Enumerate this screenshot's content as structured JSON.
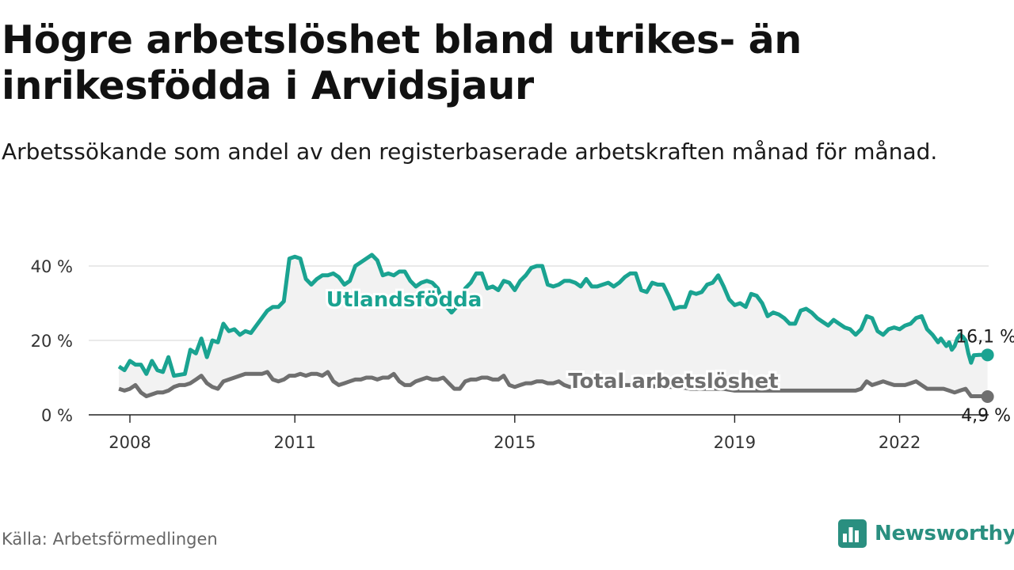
{
  "header": {
    "title": "Högre arbetslöshet bland utrikes- än inrikesfödda i Arvidsjaur",
    "subtitle": "Arbetssökande som andel av den registerbaserade arbetskraften månad för månad."
  },
  "footer": {
    "source": "Källa: Arbetsförmedlingen",
    "brand": "Newsworthy"
  },
  "colors": {
    "foreign_born": "#1aa391",
    "total": "#6f6f6f",
    "band": "#f2f2f2",
    "grid": "#dddddd",
    "brand": "#2a8f80"
  },
  "chart_data": {
    "type": "line",
    "title": "Högre arbetslöshet bland utrikes- än inrikesfödda i Arvidsjaur",
    "subtitle": "Arbetssökande som andel av den registerbaserade arbetskraften månad för månad.",
    "xlabel": "",
    "ylabel": "",
    "x_range": [
      2007.8,
      2022.9
    ],
    "ylim": [
      0,
      45
    ],
    "y_ticks": [
      {
        "value": 0,
        "label": "0 %"
      },
      {
        "value": 20,
        "label": "20 %"
      },
      {
        "value": 40,
        "label": "40 %"
      }
    ],
    "x_ticks": [
      {
        "value": 2008,
        "label": "2008"
      },
      {
        "value": 2011,
        "label": "2011"
      },
      {
        "value": 2015,
        "label": "2015"
      },
      {
        "value": 2019,
        "label": "2019"
      },
      {
        "value": 2022,
        "label": "2022"
      }
    ],
    "grid": true,
    "series": [
      {
        "name": "Utlandsfödda",
        "end_label": "16,1 %",
        "points": [
          [
            2007.8,
            13
          ],
          [
            2007.9,
            12
          ],
          [
            2008.0,
            14.5
          ],
          [
            2008.1,
            13.5
          ],
          [
            2008.2,
            13.5
          ],
          [
            2008.3,
            11
          ],
          [
            2008.4,
            14.5
          ],
          [
            2008.5,
            12
          ],
          [
            2008.6,
            11.5
          ],
          [
            2008.7,
            15.5
          ],
          [
            2008.8,
            10.5
          ],
          [
            2009.0,
            11
          ],
          [
            2009.1,
            17.5
          ],
          [
            2009.2,
            16.5
          ],
          [
            2009.3,
            20.5
          ],
          [
            2009.4,
            15.5
          ],
          [
            2009.5,
            20
          ],
          [
            2009.6,
            19.5
          ],
          [
            2009.7,
            24.5
          ],
          [
            2009.8,
            22.5
          ],
          [
            2009.9,
            23
          ],
          [
            2010.0,
            21.5
          ],
          [
            2010.1,
            22.5
          ],
          [
            2010.2,
            22
          ],
          [
            2010.3,
            24
          ],
          [
            2010.4,
            26
          ],
          [
            2010.5,
            28
          ],
          [
            2010.6,
            29
          ],
          [
            2010.7,
            29
          ],
          [
            2010.8,
            30.5
          ],
          [
            2010.9,
            42
          ],
          [
            2011.0,
            42.5
          ],
          [
            2011.1,
            42
          ],
          [
            2011.2,
            36.5
          ],
          [
            2011.3,
            35
          ],
          [
            2011.4,
            36.5
          ],
          [
            2011.5,
            37.5
          ],
          [
            2011.6,
            37.5
          ],
          [
            2011.7,
            38
          ],
          [
            2011.8,
            37
          ],
          [
            2011.9,
            35
          ],
          [
            2012.0,
            36
          ],
          [
            2012.1,
            40
          ],
          [
            2012.2,
            41
          ],
          [
            2012.4,
            43
          ],
          [
            2012.5,
            41.5
          ],
          [
            2012.6,
            37.5
          ],
          [
            2012.7,
            38
          ],
          [
            2012.8,
            37.5
          ],
          [
            2012.9,
            38.5
          ],
          [
            2013.0,
            38.5
          ],
          [
            2013.1,
            36
          ],
          [
            2013.2,
            34.5
          ],
          [
            2013.3,
            35.5
          ],
          [
            2013.4,
            36
          ],
          [
            2013.5,
            35.5
          ],
          [
            2013.6,
            34
          ],
          [
            2013.7,
            30
          ],
          [
            2013.85,
            27.5
          ],
          [
            2014.0,
            30
          ],
          [
            2014.1,
            34
          ],
          [
            2014.2,
            35.5
          ],
          [
            2014.3,
            38
          ],
          [
            2014.4,
            38
          ],
          [
            2014.5,
            34
          ],
          [
            2014.6,
            34.5
          ],
          [
            2014.7,
            33.5
          ],
          [
            2014.8,
            36
          ],
          [
            2014.9,
            35.5
          ],
          [
            2015.0,
            33.5
          ],
          [
            2015.1,
            36
          ],
          [
            2015.2,
            37.5
          ],
          [
            2015.3,
            39.5
          ],
          [
            2015.4,
            40
          ],
          [
            2015.5,
            40
          ],
          [
            2015.6,
            35
          ],
          [
            2015.7,
            34.5
          ],
          [
            2015.8,
            35
          ],
          [
            2015.9,
            36
          ],
          [
            2016.0,
            36
          ],
          [
            2016.1,
            35.5
          ],
          [
            2016.2,
            34.5
          ],
          [
            2016.3,
            36.5
          ],
          [
            2016.4,
            34.5
          ],
          [
            2016.5,
            34.5
          ],
          [
            2016.6,
            35
          ],
          [
            2016.7,
            35.5
          ],
          [
            2016.8,
            34.5
          ],
          [
            2016.9,
            35.5
          ],
          [
            2017.0,
            37
          ],
          [
            2017.1,
            38
          ],
          [
            2017.2,
            38
          ],
          [
            2017.3,
            33.5
          ],
          [
            2017.4,
            33
          ],
          [
            2017.5,
            35.5
          ],
          [
            2017.6,
            35
          ],
          [
            2017.7,
            35
          ],
          [
            2017.8,
            32
          ],
          [
            2017.9,
            28.5
          ],
          [
            2018.0,
            29
          ],
          [
            2018.1,
            29
          ],
          [
            2018.2,
            33
          ],
          [
            2018.3,
            32.5
          ],
          [
            2018.4,
            33
          ],
          [
            2018.5,
            35
          ],
          [
            2018.6,
            35.5
          ],
          [
            2018.7,
            37.5
          ],
          [
            2018.8,
            34.5
          ],
          [
            2018.9,
            31
          ],
          [
            2019.0,
            29.5
          ],
          [
            2019.1,
            30
          ],
          [
            2019.2,
            29
          ],
          [
            2019.3,
            32.5
          ],
          [
            2019.4,
            32
          ],
          [
            2019.5,
            30
          ],
          [
            2019.6,
            26.5
          ],
          [
            2019.7,
            27.5
          ],
          [
            2019.8,
            27
          ],
          [
            2019.9,
            26
          ],
          [
            2020.0,
            24.5
          ],
          [
            2020.1,
            24.5
          ],
          [
            2020.2,
            28
          ],
          [
            2020.3,
            28.5
          ],
          [
            2020.4,
            27.5
          ],
          [
            2020.5,
            26
          ],
          [
            2020.6,
            25
          ],
          [
            2020.7,
            24
          ],
          [
            2020.8,
            25.5
          ],
          [
            2020.9,
            24.5
          ],
          [
            2021.0,
            23.5
          ],
          [
            2021.1,
            23
          ],
          [
            2021.2,
            21.5
          ],
          [
            2021.3,
            23
          ],
          [
            2021.4,
            26.5
          ],
          [
            2021.5,
            26
          ],
          [
            2021.6,
            22.5
          ],
          [
            2021.7,
            21.5
          ],
          [
            2021.8,
            23
          ],
          [
            2021.9,
            23.5
          ],
          [
            2022.0,
            23
          ],
          [
            2022.1,
            24
          ],
          [
            2022.2,
            24.5
          ],
          [
            2022.3,
            26
          ],
          [
            2022.4,
            26.5
          ],
          [
            2022.5,
            23
          ],
          [
            2022.6,
            21.5
          ],
          [
            2022.7,
            19.5
          ],
          [
            2022.75,
            20.5
          ],
          [
            2022.8,
            19.5
          ],
          [
            2022.85,
            18.5
          ],
          [
            2022.9,
            19.5
          ],
          [
            2022.95,
            17.5
          ],
          [
            2023.0,
            18.5
          ],
          [
            2023.05,
            20.5
          ],
          [
            2023.1,
            21.5
          ],
          [
            2023.15,
            21
          ],
          [
            2023.2,
            20
          ],
          [
            2023.25,
            16.5
          ],
          [
            2023.3,
            14
          ],
          [
            2023.35,
            16
          ],
          [
            2023.45,
            16.1
          ],
          [
            2023.6,
            16.1
          ]
        ]
      },
      {
        "name": "Total arbetslöshet",
        "end_label": "4,9 %",
        "points": [
          [
            2007.8,
            7
          ],
          [
            2007.9,
            6.5
          ],
          [
            2008.0,
            7
          ],
          [
            2008.1,
            8
          ],
          [
            2008.2,
            6
          ],
          [
            2008.3,
            5
          ],
          [
            2008.4,
            5.5
          ],
          [
            2008.5,
            6
          ],
          [
            2008.6,
            6
          ],
          [
            2008.7,
            6.5
          ],
          [
            2008.8,
            7.5
          ],
          [
            2008.9,
            8
          ],
          [
            2009.0,
            8
          ],
          [
            2009.1,
            8.5
          ],
          [
            2009.2,
            9.5
          ],
          [
            2009.3,
            10.5
          ],
          [
            2009.4,
            8.5
          ],
          [
            2009.5,
            7.5
          ],
          [
            2009.6,
            7
          ],
          [
            2009.7,
            9
          ],
          [
            2009.8,
            9.5
          ],
          [
            2009.9,
            10
          ],
          [
            2010.0,
            10.5
          ],
          [
            2010.1,
            11
          ],
          [
            2010.2,
            11
          ],
          [
            2010.3,
            11
          ],
          [
            2010.4,
            11
          ],
          [
            2010.5,
            11.5
          ],
          [
            2010.6,
            9.5
          ],
          [
            2010.7,
            9
          ],
          [
            2010.8,
            9.5
          ],
          [
            2010.9,
            10.5
          ],
          [
            2011.0,
            10.5
          ],
          [
            2011.1,
            11
          ],
          [
            2011.2,
            10.5
          ],
          [
            2011.3,
            11
          ],
          [
            2011.4,
            11
          ],
          [
            2011.5,
            10.5
          ],
          [
            2011.6,
            11.5
          ],
          [
            2011.7,
            9
          ],
          [
            2011.8,
            8
          ],
          [
            2011.9,
            8.5
          ],
          [
            2012.0,
            9
          ],
          [
            2012.1,
            9.5
          ],
          [
            2012.2,
            9.5
          ],
          [
            2012.3,
            10
          ],
          [
            2012.4,
            10
          ],
          [
            2012.5,
            9.5
          ],
          [
            2012.6,
            10
          ],
          [
            2012.7,
            10
          ],
          [
            2012.8,
            11
          ],
          [
            2012.9,
            9
          ],
          [
            2013.0,
            8
          ],
          [
            2013.1,
            8
          ],
          [
            2013.2,
            9
          ],
          [
            2013.3,
            9.5
          ],
          [
            2013.4,
            10
          ],
          [
            2013.5,
            9.5
          ],
          [
            2013.6,
            9.5
          ],
          [
            2013.7,
            10
          ],
          [
            2013.8,
            8.5
          ],
          [
            2013.9,
            7
          ],
          [
            2014.0,
            7
          ],
          [
            2014.1,
            9
          ],
          [
            2014.2,
            9.5
          ],
          [
            2014.3,
            9.5
          ],
          [
            2014.4,
            10
          ],
          [
            2014.5,
            10
          ],
          [
            2014.6,
            9.5
          ],
          [
            2014.7,
            9.5
          ],
          [
            2014.8,
            10.5
          ],
          [
            2014.9,
            8
          ],
          [
            2015.0,
            7.5
          ],
          [
            2015.1,
            8
          ],
          [
            2015.2,
            8.5
          ],
          [
            2015.3,
            8.5
          ],
          [
            2015.4,
            9
          ],
          [
            2015.5,
            9
          ],
          [
            2015.6,
            8.5
          ],
          [
            2015.7,
            8.5
          ],
          [
            2015.8,
            9
          ],
          [
            2015.9,
            8
          ],
          [
            2016.0,
            7.5
          ],
          [
            2016.1,
            7.5
          ],
          [
            2016.2,
            8
          ],
          [
            2016.3,
            8.5
          ],
          [
            2016.4,
            8.5
          ],
          [
            2016.5,
            8.5
          ],
          [
            2016.6,
            9
          ],
          [
            2016.7,
            8.5
          ],
          [
            2016.8,
            8.5
          ],
          [
            2016.9,
            8
          ],
          [
            2017.0,
            8
          ],
          [
            2017.2,
            8
          ],
          [
            2017.4,
            8
          ],
          [
            2017.6,
            7.5
          ],
          [
            2017.8,
            7.5
          ],
          [
            2018.0,
            7.5
          ],
          [
            2018.2,
            7
          ],
          [
            2018.4,
            7
          ],
          [
            2018.6,
            7
          ],
          [
            2018.8,
            7
          ],
          [
            2019.0,
            6.5
          ],
          [
            2019.2,
            6.5
          ],
          [
            2019.4,
            6.5
          ],
          [
            2019.6,
            6.5
          ],
          [
            2019.8,
            6.5
          ],
          [
            2020.0,
            6.5
          ],
          [
            2020.2,
            6.5
          ],
          [
            2020.4,
            6.5
          ],
          [
            2020.6,
            6.5
          ],
          [
            2020.8,
            6.5
          ],
          [
            2021.0,
            6.5
          ],
          [
            2021.1,
            6.5
          ],
          [
            2021.2,
            6.5
          ],
          [
            2021.3,
            7
          ],
          [
            2021.4,
            9
          ],
          [
            2021.5,
            8
          ],
          [
            2021.6,
            8.5
          ],
          [
            2021.7,
            9
          ],
          [
            2021.8,
            8.5
          ],
          [
            2021.9,
            8
          ],
          [
            2022.0,
            8
          ],
          [
            2022.1,
            8
          ],
          [
            2022.2,
            8.5
          ],
          [
            2022.3,
            9
          ],
          [
            2022.4,
            8
          ],
          [
            2022.5,
            7
          ],
          [
            2022.6,
            7
          ],
          [
            2022.7,
            7
          ],
          [
            2022.8,
            7
          ],
          [
            2022.9,
            6.5
          ],
          [
            2023.0,
            6
          ],
          [
            2023.1,
            6.5
          ],
          [
            2023.2,
            7
          ],
          [
            2023.3,
            5
          ],
          [
            2023.4,
            5
          ],
          [
            2023.5,
            5
          ],
          [
            2023.6,
            4.9
          ]
        ]
      }
    ]
  }
}
